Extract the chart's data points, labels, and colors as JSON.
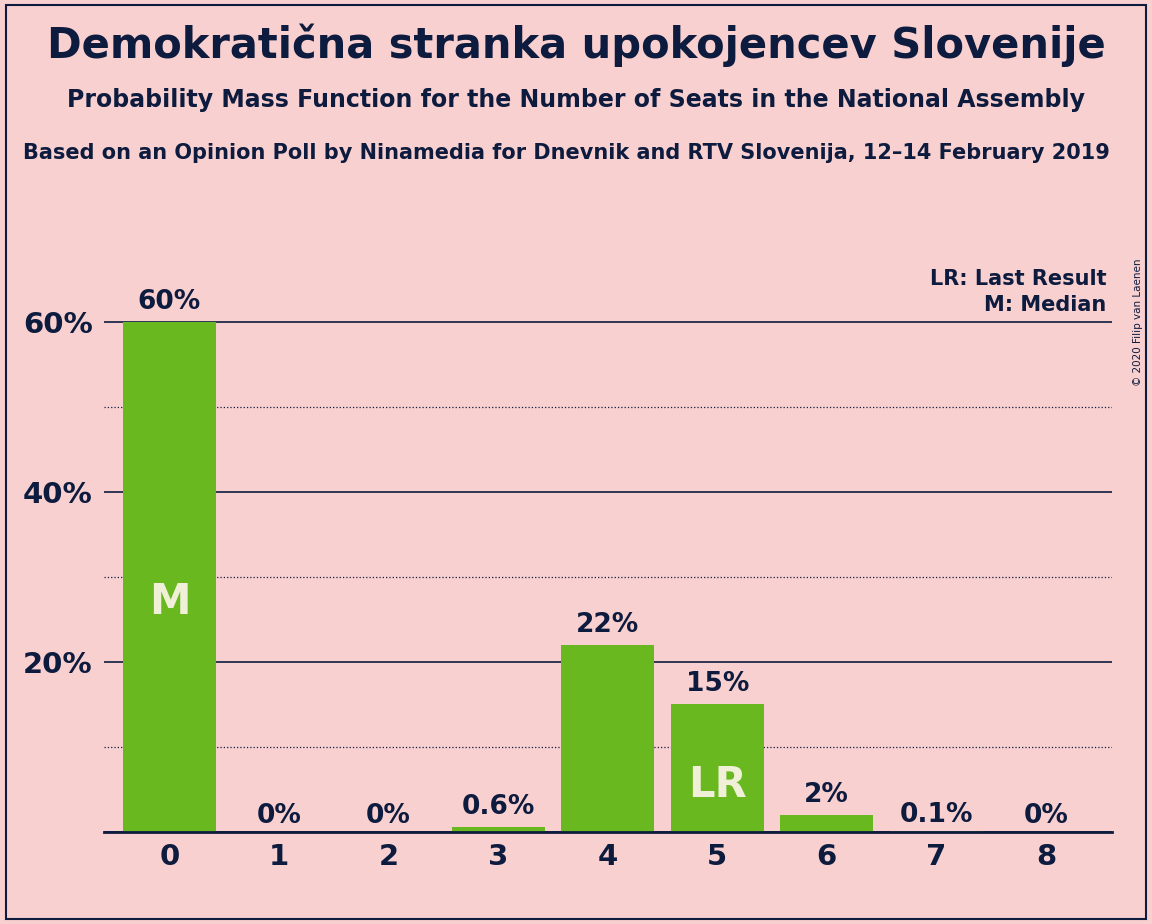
{
  "title": "Demokratična stranka upokojencev Slovenije",
  "subtitle": "Probability Mass Function for the Number of Seats in the National Assembly",
  "source": "Based on an Opinion Poll by Ninamedia for Dnevnik and RTV Slovenija, 12–14 February 2019",
  "copyright": "© 2020 Filip van Laenen",
  "categories": [
    0,
    1,
    2,
    3,
    4,
    5,
    6,
    7,
    8
  ],
  "values": [
    60.0,
    0.0,
    0.0,
    0.6,
    22.0,
    15.0,
    2.0,
    0.1,
    0.0
  ],
  "labels": [
    "60%",
    "0%",
    "0%",
    "0.6%",
    "22%",
    "15%",
    "2%",
    "0.1%",
    "0%"
  ],
  "bar_color": "#6ab820",
  "bg_color": "#f9d0d0",
  "text_color": "#0d1b3e",
  "label_color_inside": "#f0f0d8",
  "label_color_outside": "#0d1b3e",
  "median_bar": 0,
  "lr_bar": 5,
  "ylim": [
    0,
    68
  ],
  "yticks": [
    20,
    40,
    60
  ],
  "ytick_labels": [
    "20%",
    "40%",
    "60%"
  ],
  "solid_gridlines": [
    20,
    40,
    60
  ],
  "dotted_gridlines": [
    10,
    30,
    50
  ],
  "legend_lr": "LR: Last Result",
  "legend_m": "M: Median",
  "title_fontsize": 30,
  "subtitle_fontsize": 17,
  "source_fontsize": 15,
  "bar_label_fontsize": 19,
  "axis_label_fontsize": 21,
  "inside_label_fontsize": 30,
  "legend_fontsize": 15
}
